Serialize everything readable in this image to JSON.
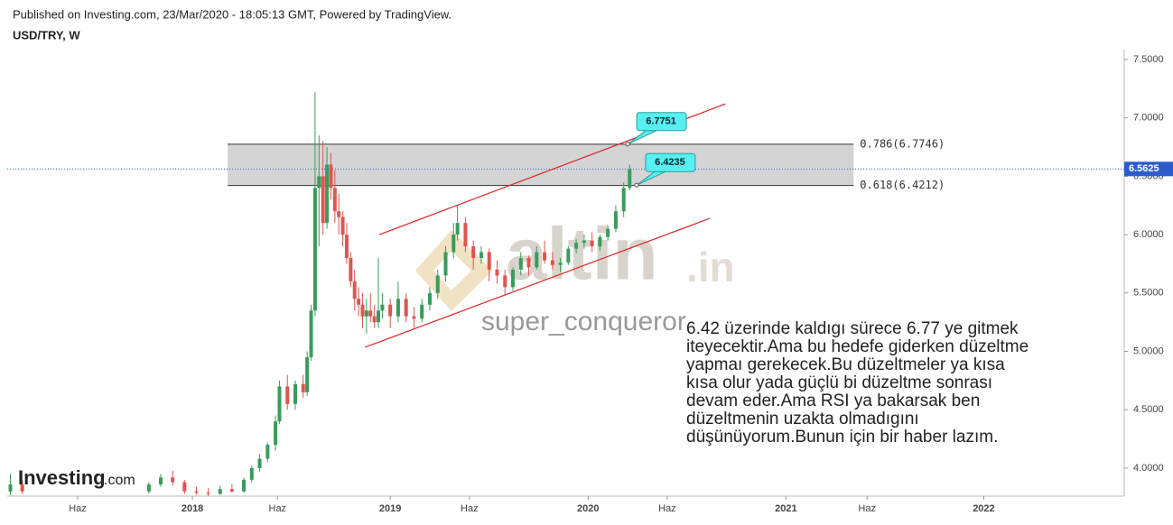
{
  "header": {
    "published": "Published on Investing.com, 23/Mar/2020 - 18:05:13 GMT, Powered by TradingView.",
    "symbol": "USD/TRY, W"
  },
  "chart_data": {
    "type": "candlestick",
    "up_color": "#3a9b5c",
    "down_color": "#e0554f",
    "xlim": [
      2017.064,
      2022.71
    ],
    "ylim": [
      3.76,
      7.585
    ],
    "yticks": [
      {
        "value": 7.5,
        "label": "7.5000"
      },
      {
        "value": 7,
        "label": "7.0000"
      },
      {
        "value": 6.5,
        "label": "6.5000"
      },
      {
        "value": 6,
        "label": "6.0000"
      },
      {
        "value": 5.5,
        "label": "5.5000"
      },
      {
        "value": 5,
        "label": "5.0000"
      },
      {
        "value": 4.5,
        "label": "4.5000"
      },
      {
        "value": 4,
        "label": "4.0000"
      }
    ],
    "xticks": [
      {
        "value": 2017.42,
        "label": "Haz"
      },
      {
        "value": 2018,
        "label": "2018"
      },
      {
        "value": 2018.43,
        "label": "Haz"
      },
      {
        "value": 2019,
        "label": "2019"
      },
      {
        "value": 2019.4,
        "label": "Haz"
      },
      {
        "value": 2020,
        "label": "2020"
      },
      {
        "value": 2020.4,
        "label": "Haz"
      },
      {
        "value": 2021,
        "label": "2021"
      },
      {
        "value": 2021.41,
        "label": "Haz"
      },
      {
        "value": 2022,
        "label": "2022"
      }
    ],
    "x": [
      2017.08,
      2017.14,
      2017.78,
      2017.84,
      2017.9,
      2017.96,
      2018.02,
      2018.08,
      2018.14,
      2018.2,
      2018.26,
      2018.3,
      2018.34,
      2018.38,
      2018.42,
      2018.44,
      2018.48,
      2018.52,
      2018.56,
      2018.58,
      2018.6,
      2018.62,
      2018.64,
      2018.66,
      2018.68,
      2018.7,
      2018.72,
      2018.74,
      2018.76,
      2018.78,
      2018.8,
      2018.82,
      2018.84,
      2018.86,
      2018.88,
      2018.9,
      2018.92,
      2018.94,
      2018.96,
      2019,
      2019.04,
      2019.08,
      2019.12,
      2019.16,
      2019.2,
      2019.24,
      2019.28,
      2019.32,
      2019.34,
      2019.38,
      2019.42,
      2019.46,
      2019.5,
      2019.54,
      2019.58,
      2019.62,
      2019.66,
      2019.7,
      2019.74,
      2019.78,
      2019.82,
      2019.86,
      2019.9,
      2019.94,
      2019.98,
      2020.02,
      2020.06,
      2020.1,
      2020.14,
      2020.18,
      2020.21
    ],
    "open": [
      3.8,
      3.86,
      3.8,
      3.86,
      3.92,
      3.88,
      3.8,
      3.79,
      3.78,
      3.82,
      3.8,
      3.9,
      4,
      4.08,
      4.2,
      4.4,
      4.7,
      4.55,
      4.72,
      4.65,
      4.95,
      5.35,
      6.4,
      6.5,
      6.1,
      6.6,
      6.4,
      6.2,
      6.15,
      6,
      5.8,
      5.6,
      5.45,
      5.4,
      5.3,
      5.35,
      5.3,
      5.25,
      5.35,
      5.4,
      5.3,
      5.45,
      5.3,
      5.28,
      5.4,
      5.5,
      5.65,
      5.85,
      6,
      6.1,
      5.9,
      5.8,
      5.85,
      5.7,
      5.65,
      5.55,
      5.7,
      5.8,
      5.72,
      5.85,
      5.78,
      5.74,
      5.76,
      5.88,
      5.93,
      5.95,
      5.9,
      5.98,
      6.05,
      6.2,
      6.4
    ],
    "high": [
      3.95,
      3.9,
      3.88,
      3.95,
      3.98,
      3.9,
      3.84,
      3.83,
      3.85,
      3.86,
      3.92,
      4.02,
      4.12,
      4.22,
      4.45,
      4.75,
      4.8,
      4.75,
      4.8,
      5,
      5.4,
      7.22,
      6.85,
      6.8,
      6.75,
      6.7,
      6.55,
      6.35,
      6.2,
      6.1,
      5.85,
      5.7,
      5.55,
      5.5,
      5.45,
      5.5,
      5.4,
      5.8,
      5.5,
      5.45,
      5.6,
      5.5,
      5.38,
      5.45,
      5.55,
      5.7,
      5.9,
      6.1,
      6.25,
      6.15,
      5.95,
      5.9,
      5.88,
      5.78,
      5.7,
      5.72,
      5.85,
      5.82,
      5.9,
      5.95,
      5.85,
      5.8,
      5.9,
      5.96,
      6,
      6.02,
      6,
      6.08,
      6.25,
      6.45,
      6.6
    ],
    "low": [
      3.77,
      3.78,
      3.78,
      3.84,
      3.85,
      3.78,
      3.77,
      3.76,
      3.77,
      3.79,
      3.79,
      3.88,
      3.97,
      4.05,
      4.15,
      4.38,
      4.5,
      4.5,
      4.6,
      4.62,
      4.92,
      5.3,
      5.9,
      6,
      6.05,
      6.3,
      6.1,
      6,
      5.9,
      5.75,
      5.55,
      5.35,
      5.3,
      5.2,
      5.15,
      5.25,
      5.2,
      5.2,
      5.28,
      5.2,
      5.25,
      5.25,
      5.2,
      5.25,
      5.35,
      5.45,
      5.6,
      5.8,
      5.95,
      5.85,
      5.7,
      5.75,
      5.6,
      5.58,
      5.48,
      5.52,
      5.65,
      5.65,
      5.7,
      5.75,
      5.7,
      5.68,
      5.74,
      5.84,
      5.88,
      5.85,
      5.86,
      5.95,
      6.02,
      6.15,
      6.38
    ],
    "close": [
      3.86,
      3.8,
      3.86,
      3.92,
      3.88,
      3.8,
      3.79,
      3.78,
      3.82,
      3.8,
      3.9,
      4,
      4.08,
      4.2,
      4.4,
      4.7,
      4.55,
      4.72,
      4.65,
      4.95,
      5.35,
      6.4,
      6.5,
      6.1,
      6.6,
      6.4,
      6.2,
      6.15,
      6,
      5.8,
      5.6,
      5.45,
      5.4,
      5.3,
      5.35,
      5.3,
      5.25,
      5.35,
      5.4,
      5.3,
      5.45,
      5.3,
      5.28,
      5.4,
      5.5,
      5.65,
      5.85,
      6,
      6.1,
      5.9,
      5.8,
      5.85,
      5.7,
      5.65,
      5.55,
      5.7,
      5.8,
      5.72,
      5.85,
      5.78,
      5.74,
      5.76,
      5.88,
      5.93,
      5.95,
      5.9,
      5.98,
      6.05,
      6.2,
      6.4,
      6.56
    ],
    "fib_zone": {
      "x": [
        2018.178,
        2021.342
      ],
      "levels": [
        {
          "value": 6.7746,
          "label": "0.786(6.7746)"
        },
        {
          "value": 6.4212,
          "label": "0.618(6.4212)"
        }
      ]
    },
    "last_price": {
      "value": 6.5625,
      "label": "6.5625"
    },
    "channels": [
      {
        "x": [
          2018.945,
          2020.694
        ],
        "y": [
          6.0,
          7.12
        ]
      },
      {
        "x": [
          2018.872,
          2020.616
        ],
        "y": [
          5.035,
          6.14
        ]
      }
    ],
    "callouts": [
      {
        "value": 6.7751,
        "label": "6.7751",
        "x": 2020.2
      },
      {
        "value": 6.4235,
        "label": "6.4235",
        "x": 2020.245
      }
    ],
    "watermark": [
      "altin",
      ".in",
      "super_conqueror"
    ],
    "comment": [
      "6.42 üzerinde kaldıgı sürece 6.77 ye gitmek",
      "iteyecektir.Ama bu hedefe giderken düzeltme",
      "yapmaı gerekecek.Bu düzeltmeler ya kısa",
      "kısa olur yada güçlü bi düzeltme sonrası",
      "devam eder.Ama RSI ya bakarsak ben",
      "düzeltmenin uzakta olmadıgını",
      "düşünüyorum.Bunun için bir haber lazım."
    ],
    "logo": [
      "Investing",
      ".com"
    ]
  }
}
